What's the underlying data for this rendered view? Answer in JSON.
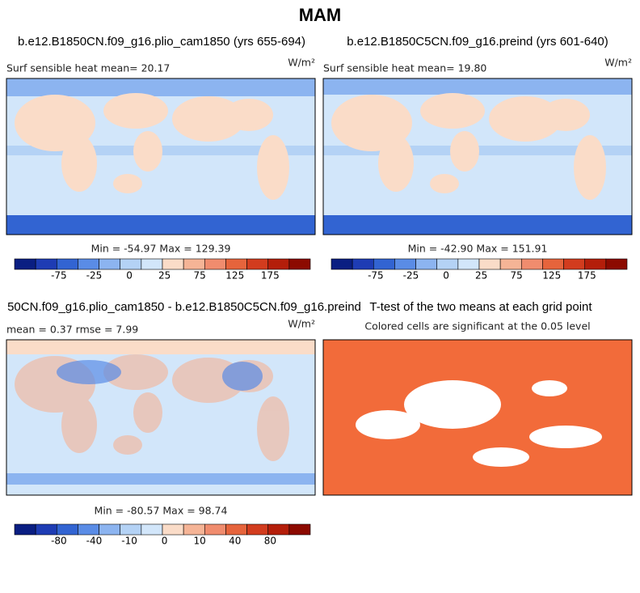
{
  "title": "MAM",
  "panels": [
    {
      "title": "b.e12.B1850CN.f09_g16.plio_cam1850 (yrs 655-694)",
      "left_label": "Surf sensible heat   mean=  20.17",
      "units": "W/m²",
      "stats": "Min = -54.97 Max = 129.39",
      "colorbar": {
        "colors": [
          "#0a1e82",
          "#1e3cb4",
          "#3264d2",
          "#5a8ce6",
          "#8cb4f0",
          "#b4d2f5",
          "#d2e6fa",
          "#fadcc8",
          "#f5b496",
          "#f08c6e",
          "#e6643c",
          "#d23c1e",
          "#b41e0a",
          "#8c0a00"
        ],
        "ticks": [
          -75,
          -25,
          0,
          25,
          75,
          125,
          175
        ]
      }
    },
    {
      "title": "b.e12.B1850C5CN.f09_g16.preind (yrs 601-640)",
      "left_label": "Surf sensible heat   mean=  19.80",
      "units": "W/m²",
      "stats": "Min = -42.90 Max = 151.91",
      "colorbar": {
        "colors": [
          "#0a1e82",
          "#1e3cb4",
          "#3264d2",
          "#5a8ce6",
          "#8cb4f0",
          "#b4d2f5",
          "#d2e6fa",
          "#fadcc8",
          "#f5b496",
          "#f08c6e",
          "#e6643c",
          "#d23c1e",
          "#b41e0a",
          "#8c0a00"
        ],
        "ticks": [
          -75,
          -25,
          0,
          25,
          75,
          125,
          175
        ]
      }
    },
    {
      "title": "50CN.f09_g16.plio_cam1850 - b.e12.B1850C5CN.f09_g16.preind",
      "left_label": "mean =    0.37     rmse =    7.99",
      "units": "W/m²",
      "stats": "Min = -80.57 Max =  98.74",
      "colorbar": {
        "colors": [
          "#0a1e82",
          "#1e3cb4",
          "#3264d2",
          "#5a8ce6",
          "#8cb4f0",
          "#b4d2f5",
          "#d2e6fa",
          "#fadcc8",
          "#f5b496",
          "#f08c6e",
          "#e6643c",
          "#d23c1e",
          "#b41e0a",
          "#8c0a00"
        ],
        "ticks": [
          -80,
          -40,
          -10,
          0,
          10,
          40,
          80
        ]
      }
    },
    {
      "title": "T-test of the two means at each grid point",
      "center_label": "Colored cells are significant at the 0.05 level"
    }
  ]
}
